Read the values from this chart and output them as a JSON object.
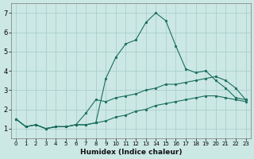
{
  "title": "",
  "xlabel": "Humidex (Indice chaleur)",
  "ylabel": "",
  "background_color": "#cce8e4",
  "grid_color": "#aacfcb",
  "line_color": "#1a6e60",
  "xlim": [
    -0.5,
    23.5
  ],
  "ylim": [
    0.5,
    7.5
  ],
  "xticks": [
    0,
    1,
    2,
    3,
    4,
    5,
    6,
    7,
    8,
    9,
    10,
    11,
    12,
    13,
    14,
    15,
    16,
    17,
    18,
    19,
    20,
    21,
    22,
    23
  ],
  "yticks": [
    1,
    2,
    3,
    4,
    5,
    6,
    7
  ],
  "series": [
    {
      "x": [
        0,
        1,
        2,
        3,
        4,
        5,
        6,
        7,
        8,
        9,
        10,
        11,
        12,
        13,
        14,
        15,
        16,
        17,
        18,
        19,
        20,
        21,
        22,
        23
      ],
      "y": [
        1.5,
        1.1,
        1.2,
        1.0,
        1.1,
        1.1,
        1.2,
        1.2,
        1.3,
        3.6,
        4.7,
        5.4,
        5.6,
        6.5,
        7.0,
        6.6,
        5.3,
        4.1,
        3.9,
        4.0,
        3.5,
        3.1,
        2.6,
        2.5
      ]
    },
    {
      "x": [
        0,
        1,
        2,
        3,
        4,
        5,
        6,
        7,
        8,
        9,
        10,
        11,
        12,
        13,
        14,
        15,
        16,
        17,
        18,
        19,
        20,
        21,
        22,
        23
      ],
      "y": [
        1.5,
        1.1,
        1.2,
        1.0,
        1.1,
        1.1,
        1.2,
        1.8,
        2.5,
        2.4,
        2.6,
        2.7,
        2.8,
        3.0,
        3.1,
        3.3,
        3.3,
        3.4,
        3.5,
        3.6,
        3.7,
        3.5,
        3.1,
        2.5
      ]
    },
    {
      "x": [
        0,
        1,
        2,
        3,
        4,
        5,
        6,
        7,
        8,
        9,
        10,
        11,
        12,
        13,
        14,
        15,
        16,
        17,
        18,
        19,
        20,
        21,
        22,
        23
      ],
      "y": [
        1.5,
        1.1,
        1.2,
        1.0,
        1.1,
        1.1,
        1.2,
        1.2,
        1.3,
        1.4,
        1.6,
        1.7,
        1.9,
        2.0,
        2.2,
        2.3,
        2.4,
        2.5,
        2.6,
        2.7,
        2.7,
        2.6,
        2.5,
        2.4
      ]
    }
  ]
}
